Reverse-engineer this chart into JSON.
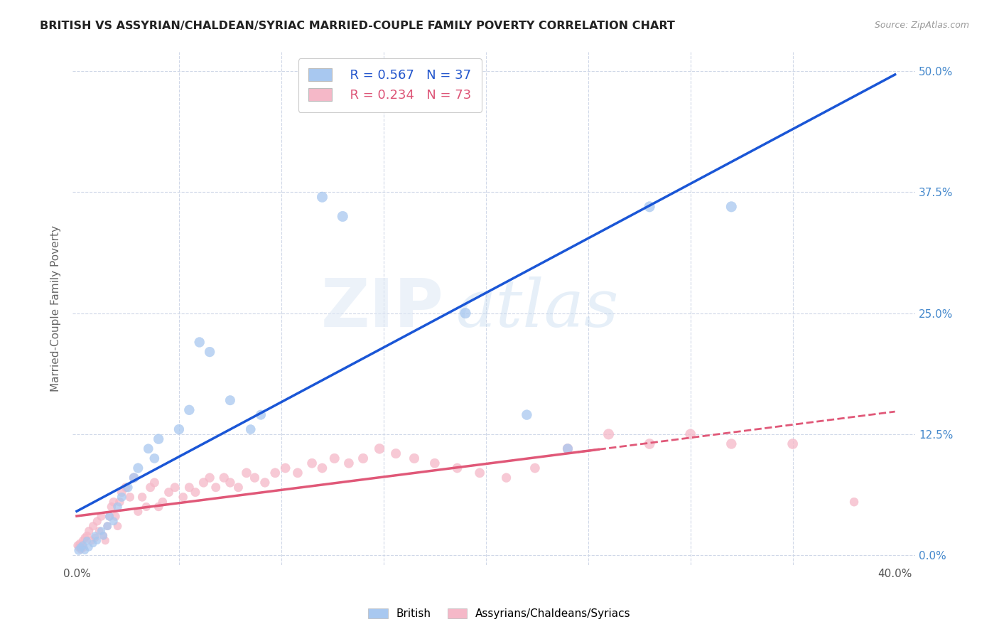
{
  "title": "BRITISH VS ASSYRIAN/CHALDEAN/SYRIAC MARRIED-COUPLE FAMILY POVERTY CORRELATION CHART",
  "source": "Source: ZipAtlas.com",
  "ylabel": "Married-Couple Family Poverty",
  "watermark_zip": "ZIP",
  "watermark_atlas": "atlas",
  "blue_R": 0.567,
  "blue_N": 37,
  "pink_R": 0.234,
  "pink_N": 73,
  "blue_color": "#a8c8f0",
  "pink_color": "#f5b8c8",
  "blue_line_color": "#1a56d6",
  "pink_line_color": "#e05878",
  "ytick_labels": [
    "0.0%",
    "12.5%",
    "25.0%",
    "37.5%",
    "50.0%"
  ],
  "ytick_values": [
    0.0,
    0.125,
    0.25,
    0.375,
    0.5
  ],
  "xtick_vals": [
    0.0,
    0.4
  ],
  "xtick_labels": [
    "0.0%",
    "40.0%"
  ],
  "xlim": [
    -0.002,
    0.41
  ],
  "ylim": [
    -0.01,
    0.52
  ],
  "blue_scatter_x": [
    0.001,
    0.002,
    0.003,
    0.004,
    0.005,
    0.006,
    0.008,
    0.009,
    0.01,
    0.012,
    0.013,
    0.015,
    0.016,
    0.018,
    0.02,
    0.022,
    0.025,
    0.028,
    0.03,
    0.035,
    0.038,
    0.04,
    0.05,
    0.055,
    0.06,
    0.065,
    0.075,
    0.085,
    0.09,
    0.12,
    0.13,
    0.16,
    0.19,
    0.22,
    0.28,
    0.32,
    0.24
  ],
  "blue_scatter_y": [
    0.005,
    0.008,
    0.01,
    0.005,
    0.015,
    0.008,
    0.012,
    0.02,
    0.015,
    0.025,
    0.02,
    0.03,
    0.04,
    0.035,
    0.05,
    0.06,
    0.07,
    0.08,
    0.09,
    0.11,
    0.1,
    0.12,
    0.13,
    0.15,
    0.22,
    0.21,
    0.16,
    0.13,
    0.145,
    0.37,
    0.35,
    0.48,
    0.25,
    0.145,
    0.36,
    0.36,
    0.11
  ],
  "pink_scatter_x": [
    0.0005,
    0.001,
    0.0015,
    0.002,
    0.0025,
    0.003,
    0.0035,
    0.004,
    0.005,
    0.006,
    0.007,
    0.008,
    0.009,
    0.01,
    0.011,
    0.012,
    0.013,
    0.014,
    0.015,
    0.016,
    0.017,
    0.018,
    0.019,
    0.02,
    0.021,
    0.022,
    0.024,
    0.026,
    0.028,
    0.03,
    0.032,
    0.034,
    0.036,
    0.038,
    0.04,
    0.042,
    0.045,
    0.048,
    0.052,
    0.055,
    0.058,
    0.062,
    0.065,
    0.068,
    0.072,
    0.075,
    0.079,
    0.083,
    0.087,
    0.092,
    0.097,
    0.102,
    0.108,
    0.115,
    0.12,
    0.126,
    0.133,
    0.14,
    0.148,
    0.156,
    0.165,
    0.175,
    0.186,
    0.197,
    0.21,
    0.224,
    0.24,
    0.26,
    0.28,
    0.3,
    0.32,
    0.35,
    0.38
  ],
  "pink_scatter_y": [
    0.01,
    0.008,
    0.012,
    0.006,
    0.01,
    0.015,
    0.008,
    0.018,
    0.02,
    0.025,
    0.015,
    0.03,
    0.018,
    0.035,
    0.025,
    0.04,
    0.02,
    0.015,
    0.03,
    0.04,
    0.05,
    0.055,
    0.04,
    0.03,
    0.055,
    0.065,
    0.07,
    0.06,
    0.08,
    0.045,
    0.06,
    0.05,
    0.07,
    0.075,
    0.05,
    0.055,
    0.065,
    0.07,
    0.06,
    0.07,
    0.065,
    0.075,
    0.08,
    0.07,
    0.08,
    0.075,
    0.07,
    0.085,
    0.08,
    0.075,
    0.085,
    0.09,
    0.085,
    0.095,
    0.09,
    0.1,
    0.095,
    0.1,
    0.11,
    0.105,
    0.1,
    0.095,
    0.09,
    0.085,
    0.08,
    0.09,
    0.11,
    0.125,
    0.115,
    0.125,
    0.115,
    0.115,
    0.055
  ],
  "blue_sizes": [
    80,
    70,
    70,
    60,
    60,
    55,
    55,
    60,
    55,
    60,
    60,
    65,
    70,
    65,
    75,
    80,
    85,
    90,
    95,
    90,
    90,
    100,
    100,
    100,
    100,
    100,
    95,
    90,
    95,
    110,
    110,
    130,
    110,
    100,
    110,
    110,
    95
  ],
  "pink_sizes": [
    70,
    65,
    65,
    65,
    65,
    65,
    60,
    65,
    70,
    70,
    65,
    70,
    65,
    70,
    65,
    70,
    65,
    60,
    65,
    70,
    75,
    75,
    70,
    65,
    75,
    80,
    80,
    75,
    85,
    70,
    75,
    70,
    80,
    80,
    75,
    75,
    80,
    80,
    75,
    80,
    80,
    85,
    85,
    80,
    85,
    85,
    80,
    90,
    85,
    85,
    90,
    90,
    90,
    90,
    90,
    95,
    90,
    95,
    100,
    95,
    95,
    90,
    90,
    90,
    85,
    90,
    100,
    110,
    105,
    105,
    100,
    105,
    75
  ]
}
